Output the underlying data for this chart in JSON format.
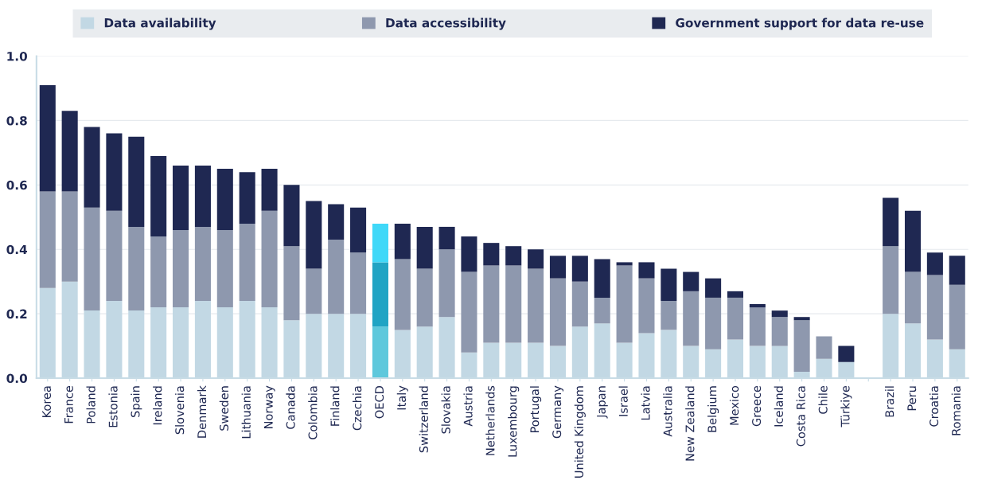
{
  "chart_data": {
    "type": "bar",
    "stacked": true,
    "categories": [
      "Korea",
      "France",
      "Poland",
      "Estonia",
      "Spain",
      "Ireland",
      "Slovenia",
      "Denmark",
      "Sweden",
      "Lithuania",
      "Norway",
      "Canada",
      "Colombia",
      "Finland",
      "Czechia",
      "OECD",
      "Italy",
      "Switzerland",
      "Slovakia",
      "Austria",
      "Netherlands",
      "Luxembourg",
      "Portugal",
      "Germany",
      "United Kingdom",
      "Japan",
      "Israel",
      "Latvia",
      "Australia",
      "New Zealand",
      "Belgium",
      "Mexico",
      "Greece",
      "Iceland",
      "Costa Rica",
      "Chile",
      "Türkiye",
      null,
      "Brazil",
      "Peru",
      "Croatia",
      "Romania"
    ],
    "series": [
      {
        "name": "Data availability",
        "color": "#c2d8e4",
        "colors": [
          "#c2d8e4",
          "#c2d8e4",
          "#c2d8e4",
          "#c2d8e4",
          "#c2d8e4",
          "#c2d8e4",
          "#c2d8e4",
          "#c2d8e4",
          "#c2d8e4",
          "#c2d8e4",
          "#c2d8e4",
          "#c2d8e4",
          "#c2d8e4",
          "#c2d8e4",
          "#c2d8e4",
          "#5ec8dc",
          "#c2d8e4",
          "#c2d8e4",
          "#c2d8e4",
          "#c2d8e4",
          "#c2d8e4",
          "#c2d8e4",
          "#c2d8e4",
          "#c2d8e4",
          "#c2d8e4",
          "#c2d8e4",
          "#c2d8e4",
          "#c2d8e4",
          "#c2d8e4",
          "#c2d8e4",
          "#c2d8e4",
          "#c2d8e4",
          "#c2d8e4",
          "#c2d8e4",
          "#c2d8e4",
          "#c2d8e4",
          "#c2d8e4",
          "#c2d8e4",
          "#c2d8e4",
          "#c2d8e4",
          "#c2d8e4",
          "#c2d8e4"
        ],
        "values": [
          0.28,
          0.3,
          0.21,
          0.24,
          0.21,
          0.22,
          0.22,
          0.24,
          0.22,
          0.24,
          0.22,
          0.18,
          0.2,
          0.2,
          0.2,
          0.16,
          0.15,
          0.16,
          0.19,
          0.08,
          0.11,
          0.11,
          0.11,
          0.1,
          0.16,
          0.17,
          0.11,
          0.14,
          0.15,
          0.1,
          0.09,
          0.12,
          0.1,
          0.1,
          0.02,
          0.06,
          0.05,
          null,
          0.2,
          0.17,
          0.12,
          0.09
        ]
      },
      {
        "name": "Data accessibility",
        "color": "#8e98ae",
        "colors": [
          "#8e98ae",
          "#8e98ae",
          "#8e98ae",
          "#8e98ae",
          "#8e98ae",
          "#8e98ae",
          "#8e98ae",
          "#8e98ae",
          "#8e98ae",
          "#8e98ae",
          "#8e98ae",
          "#8e98ae",
          "#8e98ae",
          "#8e98ae",
          "#8e98ae",
          "#20a4c4",
          "#8e98ae",
          "#8e98ae",
          "#8e98ae",
          "#8e98ae",
          "#8e98ae",
          "#8e98ae",
          "#8e98ae",
          "#8e98ae",
          "#8e98ae",
          "#8e98ae",
          "#8e98ae",
          "#8e98ae",
          "#8e98ae",
          "#8e98ae",
          "#8e98ae",
          "#8e98ae",
          "#8e98ae",
          "#8e98ae",
          "#8e98ae",
          "#8e98ae",
          "#8e98ae",
          "#8e98ae",
          "#8e98ae",
          "#8e98ae",
          "#8e98ae",
          "#8e98ae"
        ],
        "values": [
          0.3,
          0.28,
          0.32,
          0.28,
          0.26,
          0.22,
          0.24,
          0.23,
          0.24,
          0.24,
          0.3,
          0.23,
          0.14,
          0.23,
          0.19,
          0.2,
          0.22,
          0.18,
          0.21,
          0.25,
          0.24,
          0.24,
          0.23,
          0.21,
          0.14,
          0.08,
          0.24,
          0.17,
          0.09,
          0.17,
          0.16,
          0.13,
          0.12,
          0.09,
          0.16,
          0.07,
          0,
          null,
          0.21,
          0.16,
          0.2,
          0.2
        ]
      },
      {
        "name": "Government support for data re-use",
        "color": "#1f2852",
        "colors": [
          "#1f2852",
          "#1f2852",
          "#1f2852",
          "#1f2852",
          "#1f2852",
          "#1f2852",
          "#1f2852",
          "#1f2852",
          "#1f2852",
          "#1f2852",
          "#1f2852",
          "#1f2852",
          "#1f2852",
          "#1f2852",
          "#1f2852",
          "#40d8f8",
          "#1f2852",
          "#1f2852",
          "#1f2852",
          "#1f2852",
          "#1f2852",
          "#1f2852",
          "#1f2852",
          "#1f2852",
          "#1f2852",
          "#1f2852",
          "#1f2852",
          "#1f2852",
          "#1f2852",
          "#1f2852",
          "#1f2852",
          "#1f2852",
          "#1f2852",
          "#1f2852",
          "#1f2852",
          "#1f2852",
          "#1f2852",
          "#1f2852",
          "#1f2852",
          "#1f2852",
          "#1f2852",
          "#1f2852"
        ],
        "values": [
          0.33,
          0.25,
          0.25,
          0.24,
          0.28,
          0.25,
          0.2,
          0.19,
          0.19,
          0.16,
          0.13,
          0.19,
          0.21,
          0.11,
          0.14,
          0.12,
          0.11,
          0.13,
          0.07,
          0.11,
          0.07,
          0.06,
          0.06,
          0.07,
          0.08,
          0.12,
          0.01,
          0.05,
          0.1,
          0.06,
          0.06,
          0.02,
          0.01,
          0.02,
          0.01,
          0,
          0.05,
          null,
          0.15,
          0.19,
          0.07,
          0.09
        ]
      }
    ],
    "ylim": [
      0,
      1.0
    ],
    "yticks": [
      {
        "value": 0,
        "label": "0.0"
      },
      {
        "value": 0.2,
        "label": "0.2"
      },
      {
        "value": 0.4,
        "label": "0.4"
      },
      {
        "value": 0.6,
        "label": "0.6"
      },
      {
        "value": 0.8,
        "label": "0.8"
      },
      {
        "value": 1.0,
        "label": "1.0"
      }
    ],
    "grid": "y",
    "legend": "top"
  }
}
